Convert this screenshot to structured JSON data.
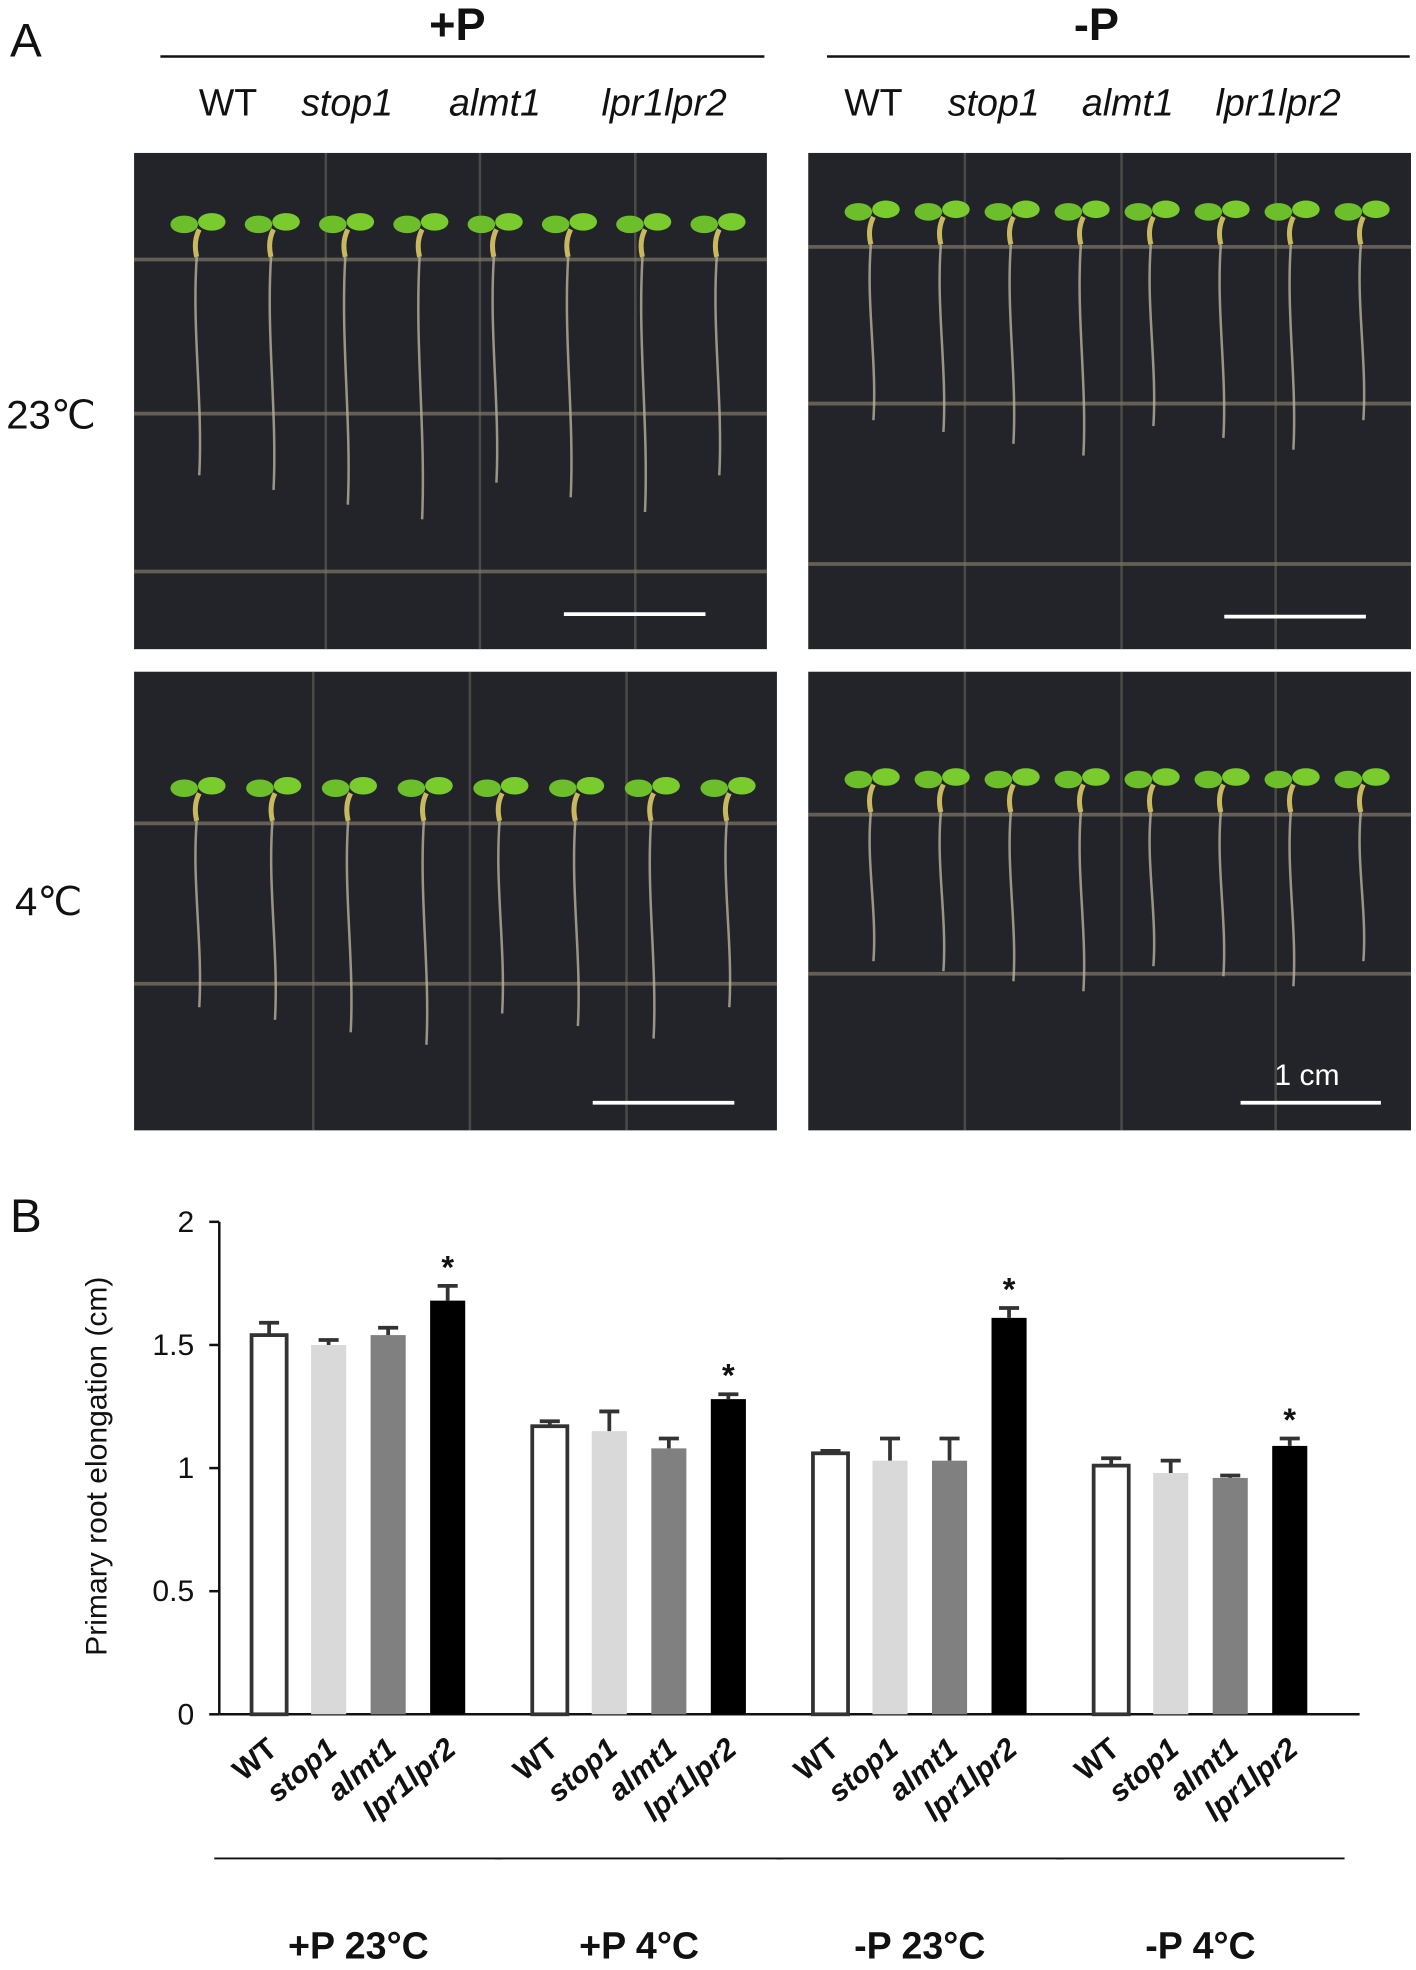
{
  "panel_a": {
    "label": "A",
    "conditions": [
      "+P",
      "-P"
    ],
    "genotypes": [
      "WT",
      "stop1",
      "almt1",
      "lpr1lpr2"
    ],
    "temperatures": [
      "23℃",
      "4℃"
    ],
    "scale_bar": "1 cm"
  },
  "chart_data": {
    "type": "bar",
    "panel_label": "B",
    "y_label": "Primary root elongation (cm)",
    "categories": [
      "+P 23°C",
      "+P 4°C",
      "-P 23°C",
      "-P 4°C"
    ],
    "series": [
      {
        "name": "WT",
        "color": "#ffffff",
        "values": [
          1.54,
          1.17,
          1.06,
          1.01
        ],
        "errors": [
          0.05,
          0.02,
          0.01,
          0.03
        ]
      },
      {
        "name": "stop1",
        "color": "#d9d9d9",
        "values": [
          1.5,
          1.15,
          1.03,
          0.98
        ],
        "errors": [
          0.02,
          0.08,
          0.09,
          0.05
        ]
      },
      {
        "name": "almt1",
        "color": "#808080",
        "values": [
          1.54,
          1.08,
          1.03,
          0.96
        ],
        "errors": [
          0.03,
          0.04,
          0.09,
          0.01
        ]
      },
      {
        "name": "lpr1lpr2",
        "color": "#000000",
        "values": [
          1.68,
          1.28,
          1.61,
          1.09
        ],
        "errors": [
          0.06,
          0.02,
          0.04,
          0.03
        ],
        "significance": [
          "*",
          "*",
          "*",
          "*"
        ]
      }
    ],
    "ylim": [
      0,
      2
    ],
    "yticks": [
      0,
      0.5,
      1,
      1.5,
      2
    ]
  }
}
